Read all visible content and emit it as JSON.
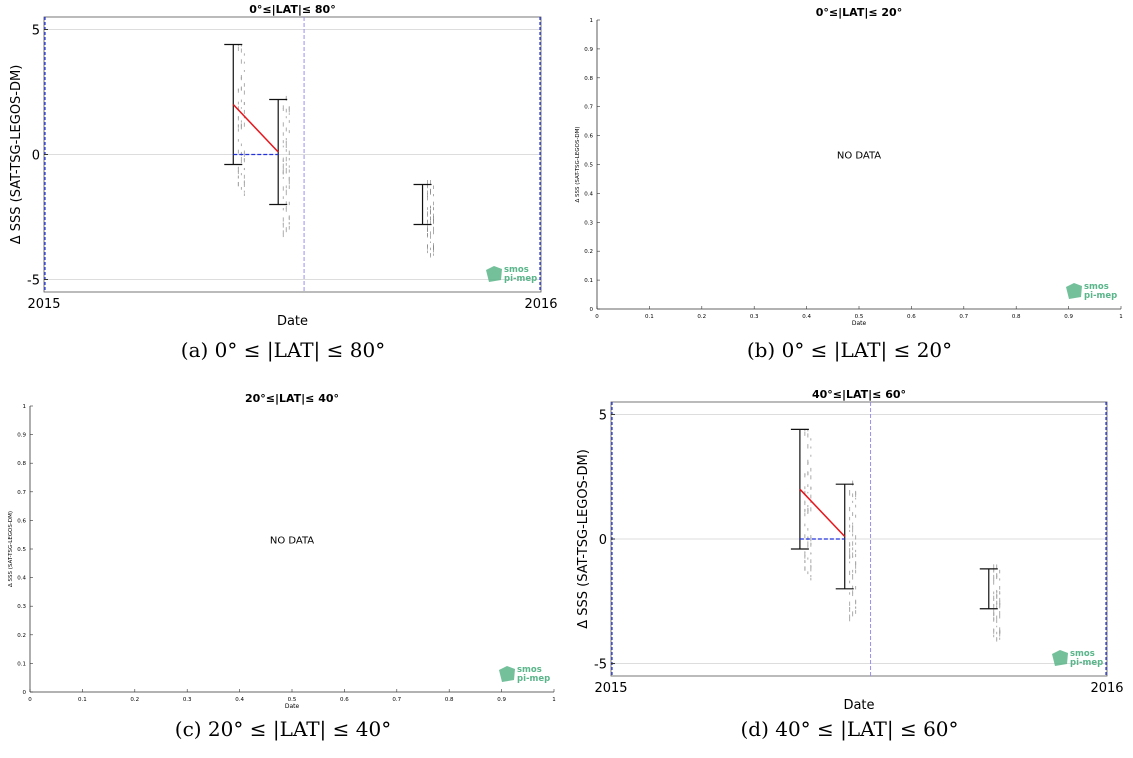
{
  "chart_data": [
    {
      "type": "errorbar",
      "id": "a",
      "title": "0°≤|LAT|≤ 80°",
      "caption": "(a) 0° ≤ |LAT| ≤ 80°",
      "xlabel": "Date",
      "ylabel": "Δ SSS (SAT-TSG-LEGOS-DM)",
      "x_tick_labels": [
        "2015",
        "2016"
      ],
      "y_ticks": [
        -5,
        0,
        5
      ],
      "ylim": [
        -5.5,
        5.5
      ],
      "grid": true,
      "points": [
        {
          "x": "2015-05-20",
          "mean": 2.0,
          "low": -0.4,
          "high": 4.4
        },
        {
          "x": "2015-06-22",
          "mean": 0.1,
          "low": -2.0,
          "high": 2.2
        },
        {
          "x": "2015-10-06",
          "mean": -2.0,
          "low": -2.8,
          "high": -1.2
        }
      ],
      "vline_date": "2015-07-11",
      "logo": [
        "smos",
        "pi-mep"
      ]
    },
    {
      "type": "empty",
      "id": "b",
      "title": "0°≤|LAT|≤ 20°",
      "caption": "(b) 0° ≤ |LAT| ≤ 20°",
      "xlabel": "Date",
      "ylabel": "Δ SSS (SAT-TSG-LEGOS-DM)",
      "message": "NO DATA",
      "x_ticks": [
        "0",
        "0.1",
        "0.2",
        "0.3",
        "0.4",
        "0.5",
        "0.6",
        "0.7",
        "0.8",
        "0.9",
        "1"
      ],
      "y_ticks": [
        "0",
        "0.1",
        "0.2",
        "0.3",
        "0.4",
        "0.5",
        "0.6",
        "0.7",
        "0.8",
        "0.9",
        "1"
      ],
      "xlim": [
        0,
        1
      ],
      "ylim": [
        0,
        1
      ],
      "logo": [
        "smos",
        "pi-mep"
      ]
    },
    {
      "type": "empty",
      "id": "c",
      "title": "20°≤|LAT|≤ 40°",
      "caption": "(c) 20° ≤ |LAT| ≤ 40°",
      "xlabel": "Date",
      "ylabel": "Δ SSS (SAT-TSG-LEGOS-DM)",
      "message": "NO DATA",
      "x_ticks": [
        "0",
        "0.1",
        "0.2",
        "0.3",
        "0.4",
        "0.5",
        "0.6",
        "0.7",
        "0.8",
        "0.9",
        "1"
      ],
      "y_ticks": [
        "0",
        "0.1",
        "0.2",
        "0.3",
        "0.4",
        "0.5",
        "0.6",
        "0.7",
        "0.8",
        "0.9",
        "1"
      ],
      "xlim": [
        0,
        1
      ],
      "ylim": [
        0,
        1
      ],
      "logo": [
        "smos",
        "pi-mep"
      ]
    },
    {
      "type": "errorbar",
      "id": "d",
      "title": "40°≤|LAT|≤ 60°",
      "caption": "(d) 40° ≤ |LAT| ≤ 60°",
      "xlabel": "Date",
      "ylabel": "Δ SSS (SAT-TSG-LEGOS-DM)",
      "x_tick_labels": [
        "2015",
        "2016"
      ],
      "y_ticks": [
        -5,
        0,
        5
      ],
      "ylim": [
        -5.5,
        5.5
      ],
      "grid": true,
      "points": [
        {
          "x": "2015-05-20",
          "mean": 2.0,
          "low": -0.4,
          "high": 4.4
        },
        {
          "x": "2015-06-22",
          "mean": 0.1,
          "low": -2.0,
          "high": 2.2
        },
        {
          "x": "2015-10-06",
          "mean": -2.0,
          "low": -2.8,
          "high": -1.2
        }
      ],
      "vline_date": "2015-07-11",
      "logo": [
        "smos",
        "pi-mep"
      ]
    }
  ],
  "colors": {
    "mean_line": "#e8151b",
    "dashed_blue": "#2233dd",
    "vline": "#9a8ff0",
    "scatter": "#888888",
    "logo": "#5ab58a"
  }
}
